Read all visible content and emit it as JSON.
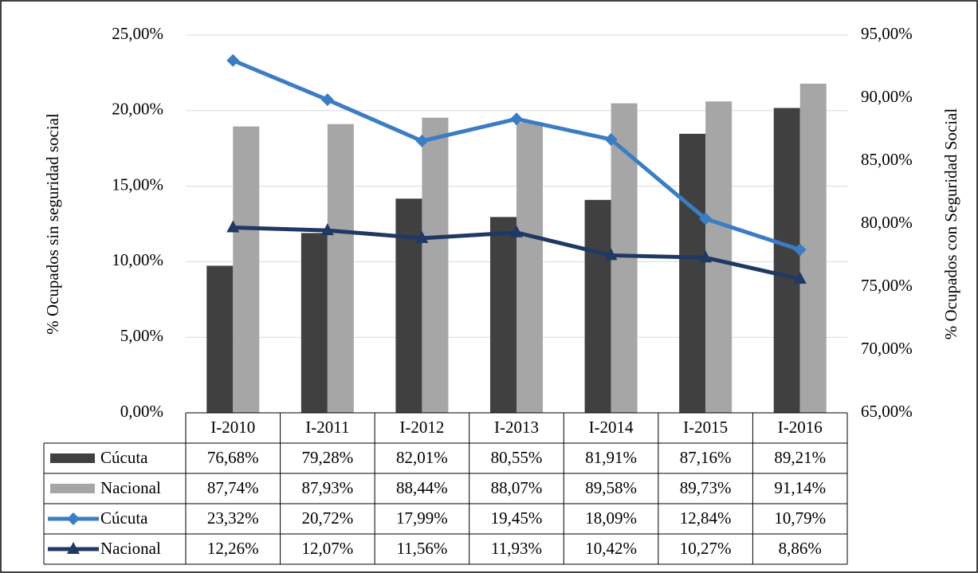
{
  "chart_data": {
    "type": "bar-line-table",
    "y_label": "% Ocupados  sin seguridad social",
    "y2_label": "% Ocupados con Seguridad Social",
    "categories": [
      "I-2010",
      "I-2011",
      "I-2012",
      "I-2013",
      "I-2014",
      "I-2015",
      "I-2016"
    ],
    "series": [
      {
        "name": "Cúcuta",
        "type": "bar",
        "axis": "y2",
        "color": "#404040",
        "values": [
          76.68,
          79.28,
          82.01,
          80.55,
          81.91,
          87.16,
          89.21
        ],
        "value_labels": [
          "76,68%",
          "79,28%",
          "82,01%",
          "80,55%",
          "81,91%",
          "87,16%",
          "89,21%"
        ]
      },
      {
        "name": "Nacional",
        "type": "bar",
        "axis": "y2",
        "color": "#a6a6a6",
        "values": [
          87.74,
          87.93,
          88.44,
          88.07,
          89.58,
          89.73,
          91.14
        ],
        "value_labels": [
          "87,74%",
          "87,93%",
          "88,44%",
          "88,07%",
          "89,58%",
          "89,73%",
          "91,14%"
        ]
      },
      {
        "name": "Cúcuta",
        "type": "line",
        "marker": "diamond",
        "color": "#3b7dc4",
        "values": [
          23.32,
          20.72,
          17.99,
          19.45,
          18.09,
          12.84,
          10.79
        ],
        "value_labels": [
          "23,32%",
          "20,72%",
          "17,99%",
          "19,45%",
          "18,09%",
          "12,84%",
          "10,79%"
        ]
      },
      {
        "name": "Nacional",
        "type": "line",
        "marker": "triangle",
        "color": "#1f3864",
        "values": [
          12.26,
          12.07,
          11.56,
          11.93,
          10.42,
          10.27,
          8.86
        ],
        "value_labels": [
          "12,26%",
          "12,07%",
          "11,56%",
          "11,93%",
          "10,42%",
          "10,27%",
          "8,86%"
        ]
      }
    ],
    "ylim": [
      0,
      25
    ],
    "yticks": [
      {
        "value": 0,
        "label": "0,00%"
      },
      {
        "value": 5,
        "label": "5,00%"
      },
      {
        "value": 10,
        "label": "10,00%"
      },
      {
        "value": 15,
        "label": "15,00%"
      },
      {
        "value": 20,
        "label": "20,00%"
      },
      {
        "value": 25,
        "label": "25,00%"
      }
    ],
    "y2lim": [
      65,
      95
    ],
    "y2ticks": [
      {
        "value": 65,
        "label": "65,00%"
      },
      {
        "value": 70,
        "label": "70,00%"
      },
      {
        "value": 75,
        "label": "75,00%"
      },
      {
        "value": 80,
        "label": "80,00%"
      },
      {
        "value": 85,
        "label": "85,00%"
      },
      {
        "value": 90,
        "label": "90,00%"
      },
      {
        "value": 95,
        "label": "95,00%"
      }
    ],
    "grid": true
  }
}
